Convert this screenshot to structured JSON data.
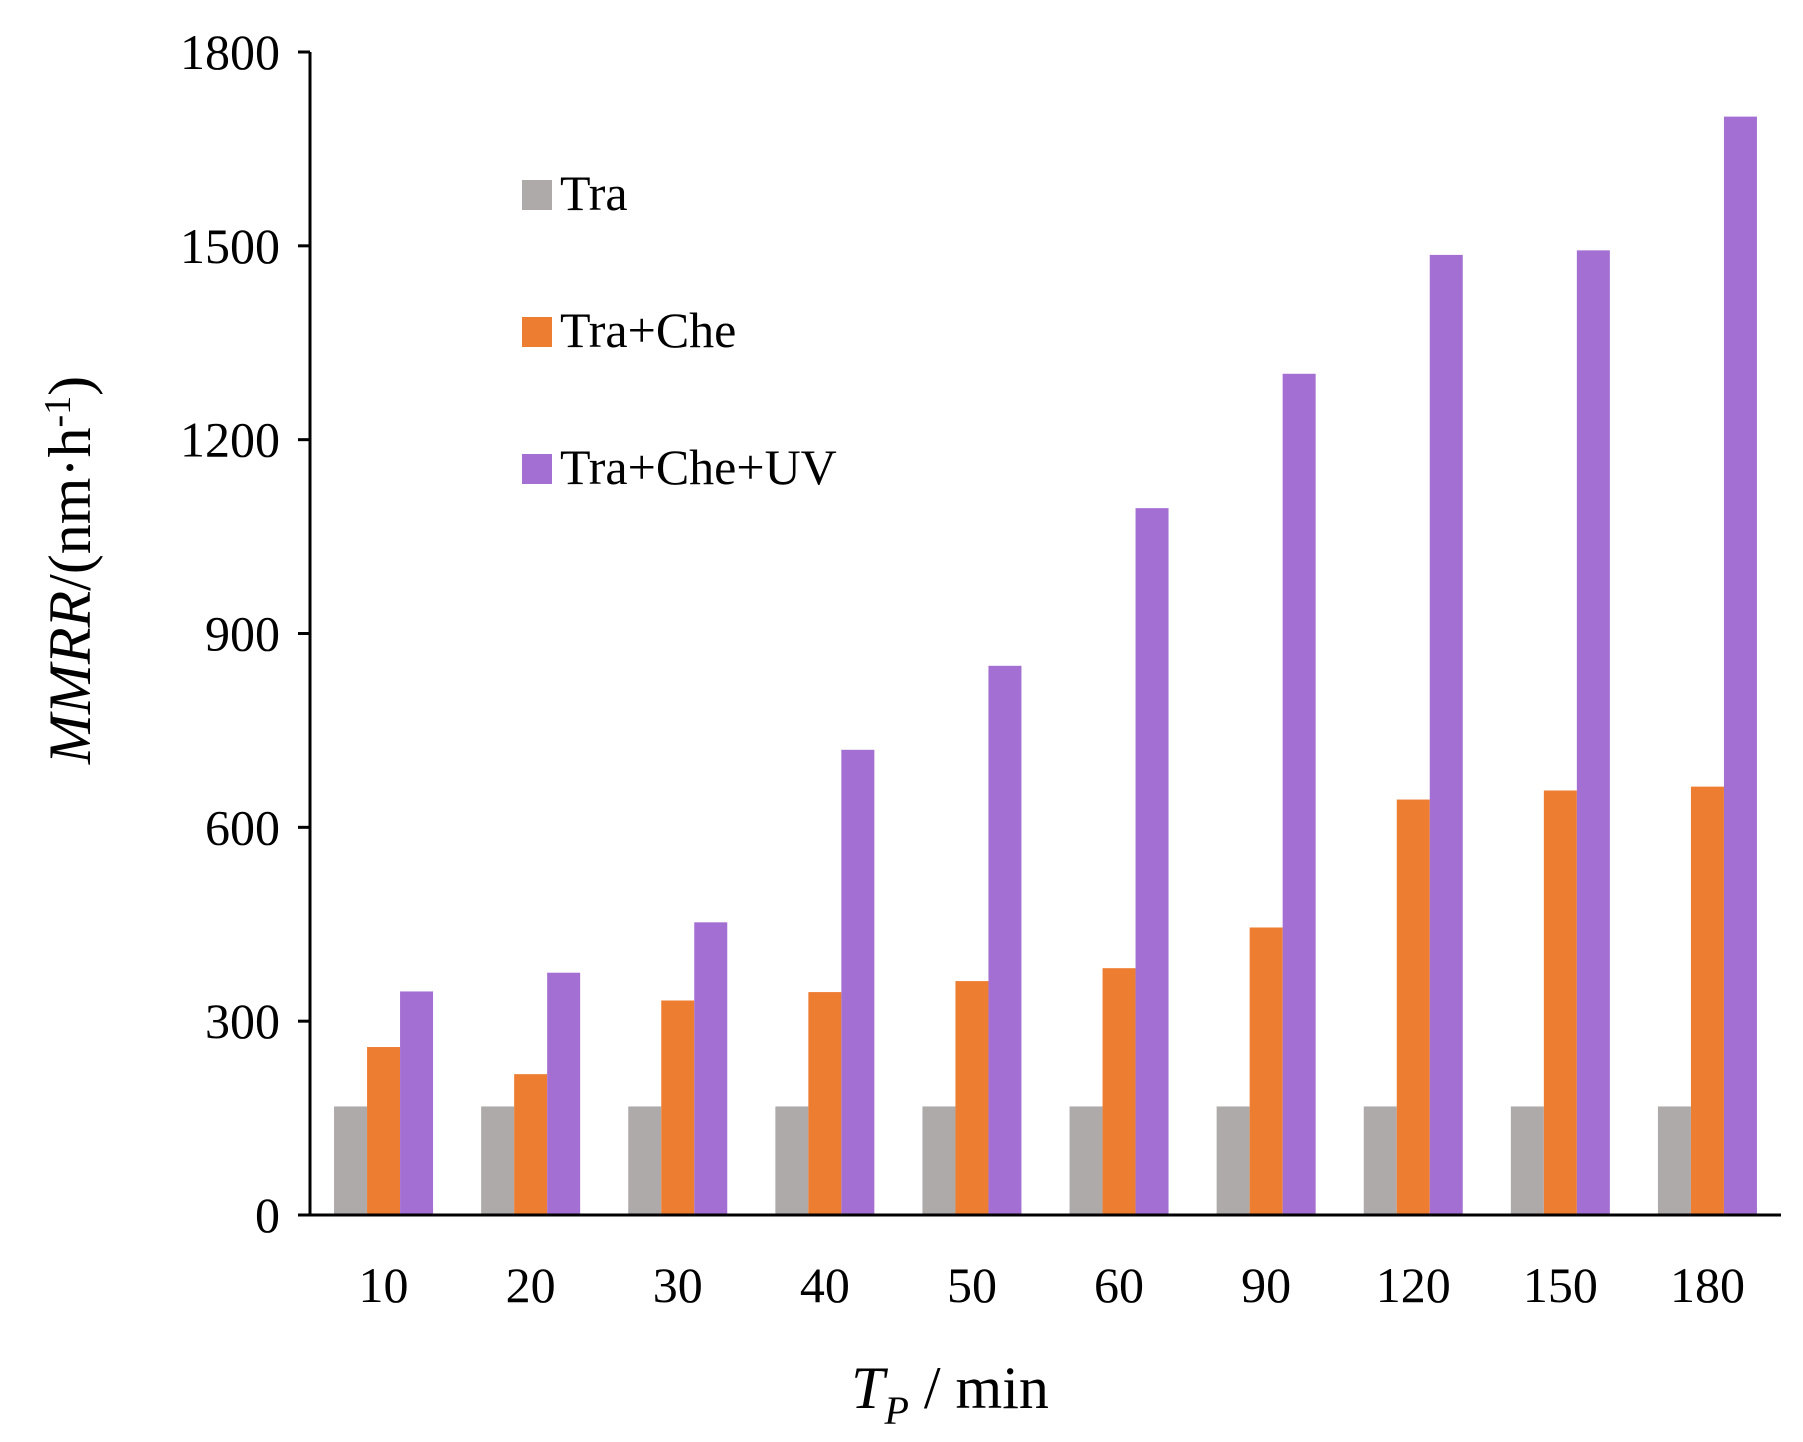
{
  "chart_data": {
    "type": "bar",
    "categories": [
      "10",
      "20",
      "30",
      "40",
      "50",
      "60",
      "90",
      "120",
      "150",
      "180"
    ],
    "series": [
      {
        "name": "Tra",
        "color": "#aeaaaa",
        "values": [
          168,
          168,
          168,
          168,
          168,
          168,
          168,
          168,
          168,
          168
        ]
      },
      {
        "name": "Tra+Che",
        "color": "#ed7d31",
        "values": [
          260,
          218,
          332,
          345,
          362,
          382,
          445,
          643,
          657,
          663
        ]
      },
      {
        "name": "Tra+Che+UV",
        "color": "#a46fd2",
        "values": [
          346,
          375,
          453,
          720,
          850,
          1094,
          1302,
          1486,
          1493,
          1700
        ]
      }
    ],
    "ylim": [
      0,
      1800
    ],
    "yticks": [
      0,
      300,
      600,
      900,
      1200,
      1500,
      1800
    ],
    "ylabel": {
      "var": "MMRR",
      "unit_prefix": "/(nm·h",
      "unit_sup": "-1",
      "unit_suffix": ")"
    },
    "xlabel": {
      "var": "T",
      "sub": "P",
      "unit": " / min"
    },
    "legend": "top-left",
    "grid": false
  }
}
